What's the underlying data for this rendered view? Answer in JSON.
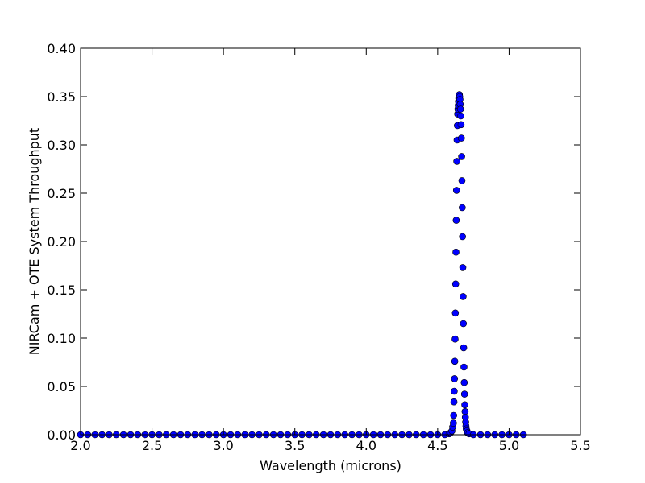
{
  "chart_data": {
    "type": "scatter",
    "title": "",
    "xlabel": "Wavelength (microns)",
    "ylabel": "NIRCam + OTE System Throughput",
    "xlim": [
      2.0,
      5.5
    ],
    "ylim": [
      0.0,
      0.4
    ],
    "grid": false,
    "legend": "none",
    "marker_color": "#0000ff",
    "x_ticks": [
      "2.0",
      "2.5",
      "3.0",
      "3.5",
      "4.0",
      "4.5",
      "5.0",
      "5.5"
    ],
    "y_ticks": [
      "0.00",
      "0.05",
      "0.10",
      "0.15",
      "0.20",
      "0.25",
      "0.30",
      "0.35",
      "0.40"
    ],
    "series": [
      {
        "x": [
          2.0,
          2.05,
          2.1,
          2.15,
          2.2,
          2.25,
          2.3,
          2.35,
          2.4,
          2.45,
          2.5,
          2.55,
          2.6,
          2.65,
          2.7,
          2.75,
          2.8,
          2.85,
          2.9,
          2.95,
          3.0,
          3.05,
          3.1,
          3.15,
          3.2,
          3.25,
          3.3,
          3.35,
          3.4,
          3.45,
          3.5,
          3.55,
          3.6,
          3.65,
          3.7,
          3.75,
          3.8,
          3.85,
          3.9,
          3.95,
          4.0,
          4.05,
          4.1,
          4.15,
          4.2,
          4.25,
          4.3,
          4.35,
          4.4,
          4.45,
          4.5,
          4.55,
          4.58,
          4.59,
          4.6,
          4.605,
          4.61,
          4.612,
          4.614,
          4.616,
          4.618,
          4.62,
          4.622,
          4.624,
          4.626,
          4.628,
          4.63,
          4.632,
          4.634,
          4.636,
          4.638,
          4.64,
          4.642,
          4.644,
          4.646,
          4.648,
          4.65,
          4.652,
          4.654,
          4.656,
          4.658,
          4.66,
          4.662,
          4.664,
          4.666,
          4.668,
          4.67,
          4.672,
          4.674,
          4.676,
          4.678,
          4.68,
          4.682,
          4.684,
          4.686,
          4.688,
          4.69,
          4.692,
          4.694,
          4.696,
          4.698,
          4.7,
          4.705,
          4.71,
          4.72,
          4.75,
          4.8,
          4.85,
          4.9,
          4.95,
          5.0,
          5.05,
          5.1
        ],
        "y": [
          0.0,
          0.0,
          0.0,
          0.0,
          0.0,
          0.0,
          0.0,
          0.0,
          0.0,
          0.0,
          0.0,
          0.0,
          0.0,
          0.0,
          0.0,
          0.0,
          0.0,
          0.0,
          0.0,
          0.0,
          0.0,
          0.0,
          0.0,
          0.0,
          0.0,
          0.0,
          0.0,
          0.0,
          0.0,
          0.0,
          0.0,
          0.0,
          0.0,
          0.0,
          0.0,
          0.0,
          0.0,
          0.0,
          0.0,
          0.0,
          0.0,
          0.0,
          0.0,
          0.0,
          0.0,
          0.0,
          0.0,
          0.0,
          0.0,
          0.0,
          0.0,
          0.0,
          0.001,
          0.002,
          0.004,
          0.008,
          0.012,
          0.02,
          0.034,
          0.045,
          0.058,
          0.076,
          0.099,
          0.126,
          0.156,
          0.189,
          0.222,
          0.253,
          0.283,
          0.305,
          0.32,
          0.332,
          0.337,
          0.341,
          0.345,
          0.348,
          0.351,
          0.352,
          0.35,
          0.347,
          0.342,
          0.337,
          0.33,
          0.321,
          0.307,
          0.288,
          0.263,
          0.235,
          0.205,
          0.173,
          0.143,
          0.115,
          0.09,
          0.07,
          0.054,
          0.042,
          0.031,
          0.024,
          0.018,
          0.013,
          0.009,
          0.006,
          0.004,
          0.002,
          0.001,
          0.0,
          0.0,
          0.0,
          0.0,
          0.0,
          0.0,
          0.0,
          0.0
        ]
      }
    ]
  }
}
